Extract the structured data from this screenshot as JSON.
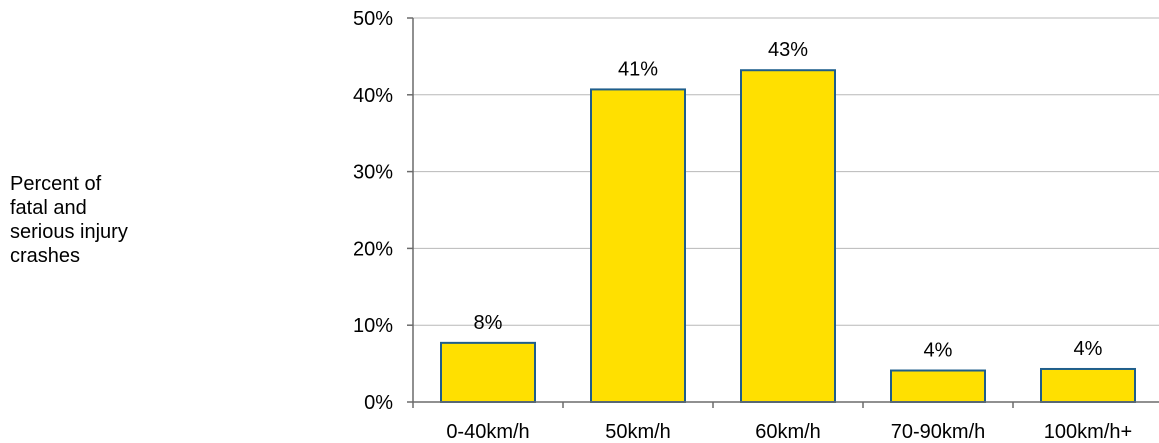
{
  "chart_data": {
    "type": "bar",
    "ylabel_lines": [
      "Percent of",
      "fatal and",
      "serious injury",
      "crashes"
    ],
    "categories": [
      "0-40km/h",
      "50km/h",
      "60km/h",
      "70-90km/h",
      "100km/h+"
    ],
    "values": [
      7.7,
      40.7,
      43.2,
      4.1,
      4.3
    ],
    "data_labels": [
      "8%",
      "41%",
      "43%",
      "4%",
      "4%"
    ],
    "ylim": [
      0,
      50
    ],
    "yticks": [
      0,
      10,
      20,
      30,
      40,
      50
    ],
    "ytick_labels": [
      "0%",
      "10%",
      "20%",
      "30%",
      "40%",
      "50%"
    ],
    "grid": true,
    "bar_color": "#FFE000",
    "bar_edge_color": "#1F5E8C"
  }
}
